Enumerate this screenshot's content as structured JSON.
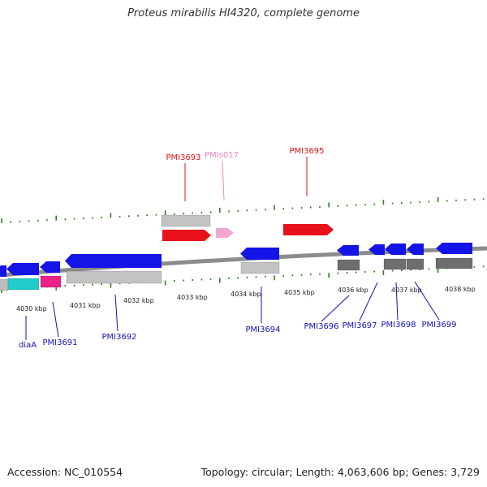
{
  "title": "Proteus mirabilis HI4320, complete genome",
  "accession_text": "Accession: NC_010554",
  "summary_text": "Topology: circular; Length: 4,063,606 bp; Genes: 3,729",
  "colors": {
    "backbone": "#8c8c8c",
    "tick": "#2f7f1f",
    "cds_forward": "#e8101a",
    "cds_reverse": "#1414e6",
    "ncrna": "#f4a6cf",
    "label_forward": "#dd1111",
    "label_reverse": "#1111bb",
    "label_ncrna": "#ee88bb",
    "cyan_gene": "#22cccc",
    "magenta_gene": "#ee2288"
  },
  "scale_labels": [
    "4030 kbp",
    "4031 kbp",
    "4032 kbp",
    "4033 kbp",
    "4034 kbp",
    "4035 kbp",
    "4036 kbp",
    "4037 kbp",
    "4038 kbp"
  ],
  "upper_labels": [
    {
      "text": "PMI3693",
      "type": "forward"
    },
    {
      "text": "PMIs017",
      "type": "ncrna"
    },
    {
      "text": "PMI3695",
      "type": "forward"
    }
  ],
  "lower_labels": [
    {
      "text": "diaA",
      "type": "reverse"
    },
    {
      "text": "PMI3691",
      "type": "reverse"
    },
    {
      "text": "PMI3692",
      "type": "reverse"
    },
    {
      "text": "PMI3694",
      "type": "reverse"
    },
    {
      "text": "PMI3696",
      "type": "reverse"
    },
    {
      "text": "PMI3697",
      "type": "reverse"
    },
    {
      "text": "PMI3698",
      "type": "reverse"
    },
    {
      "text": "PMI3699",
      "type": "reverse"
    }
  ]
}
